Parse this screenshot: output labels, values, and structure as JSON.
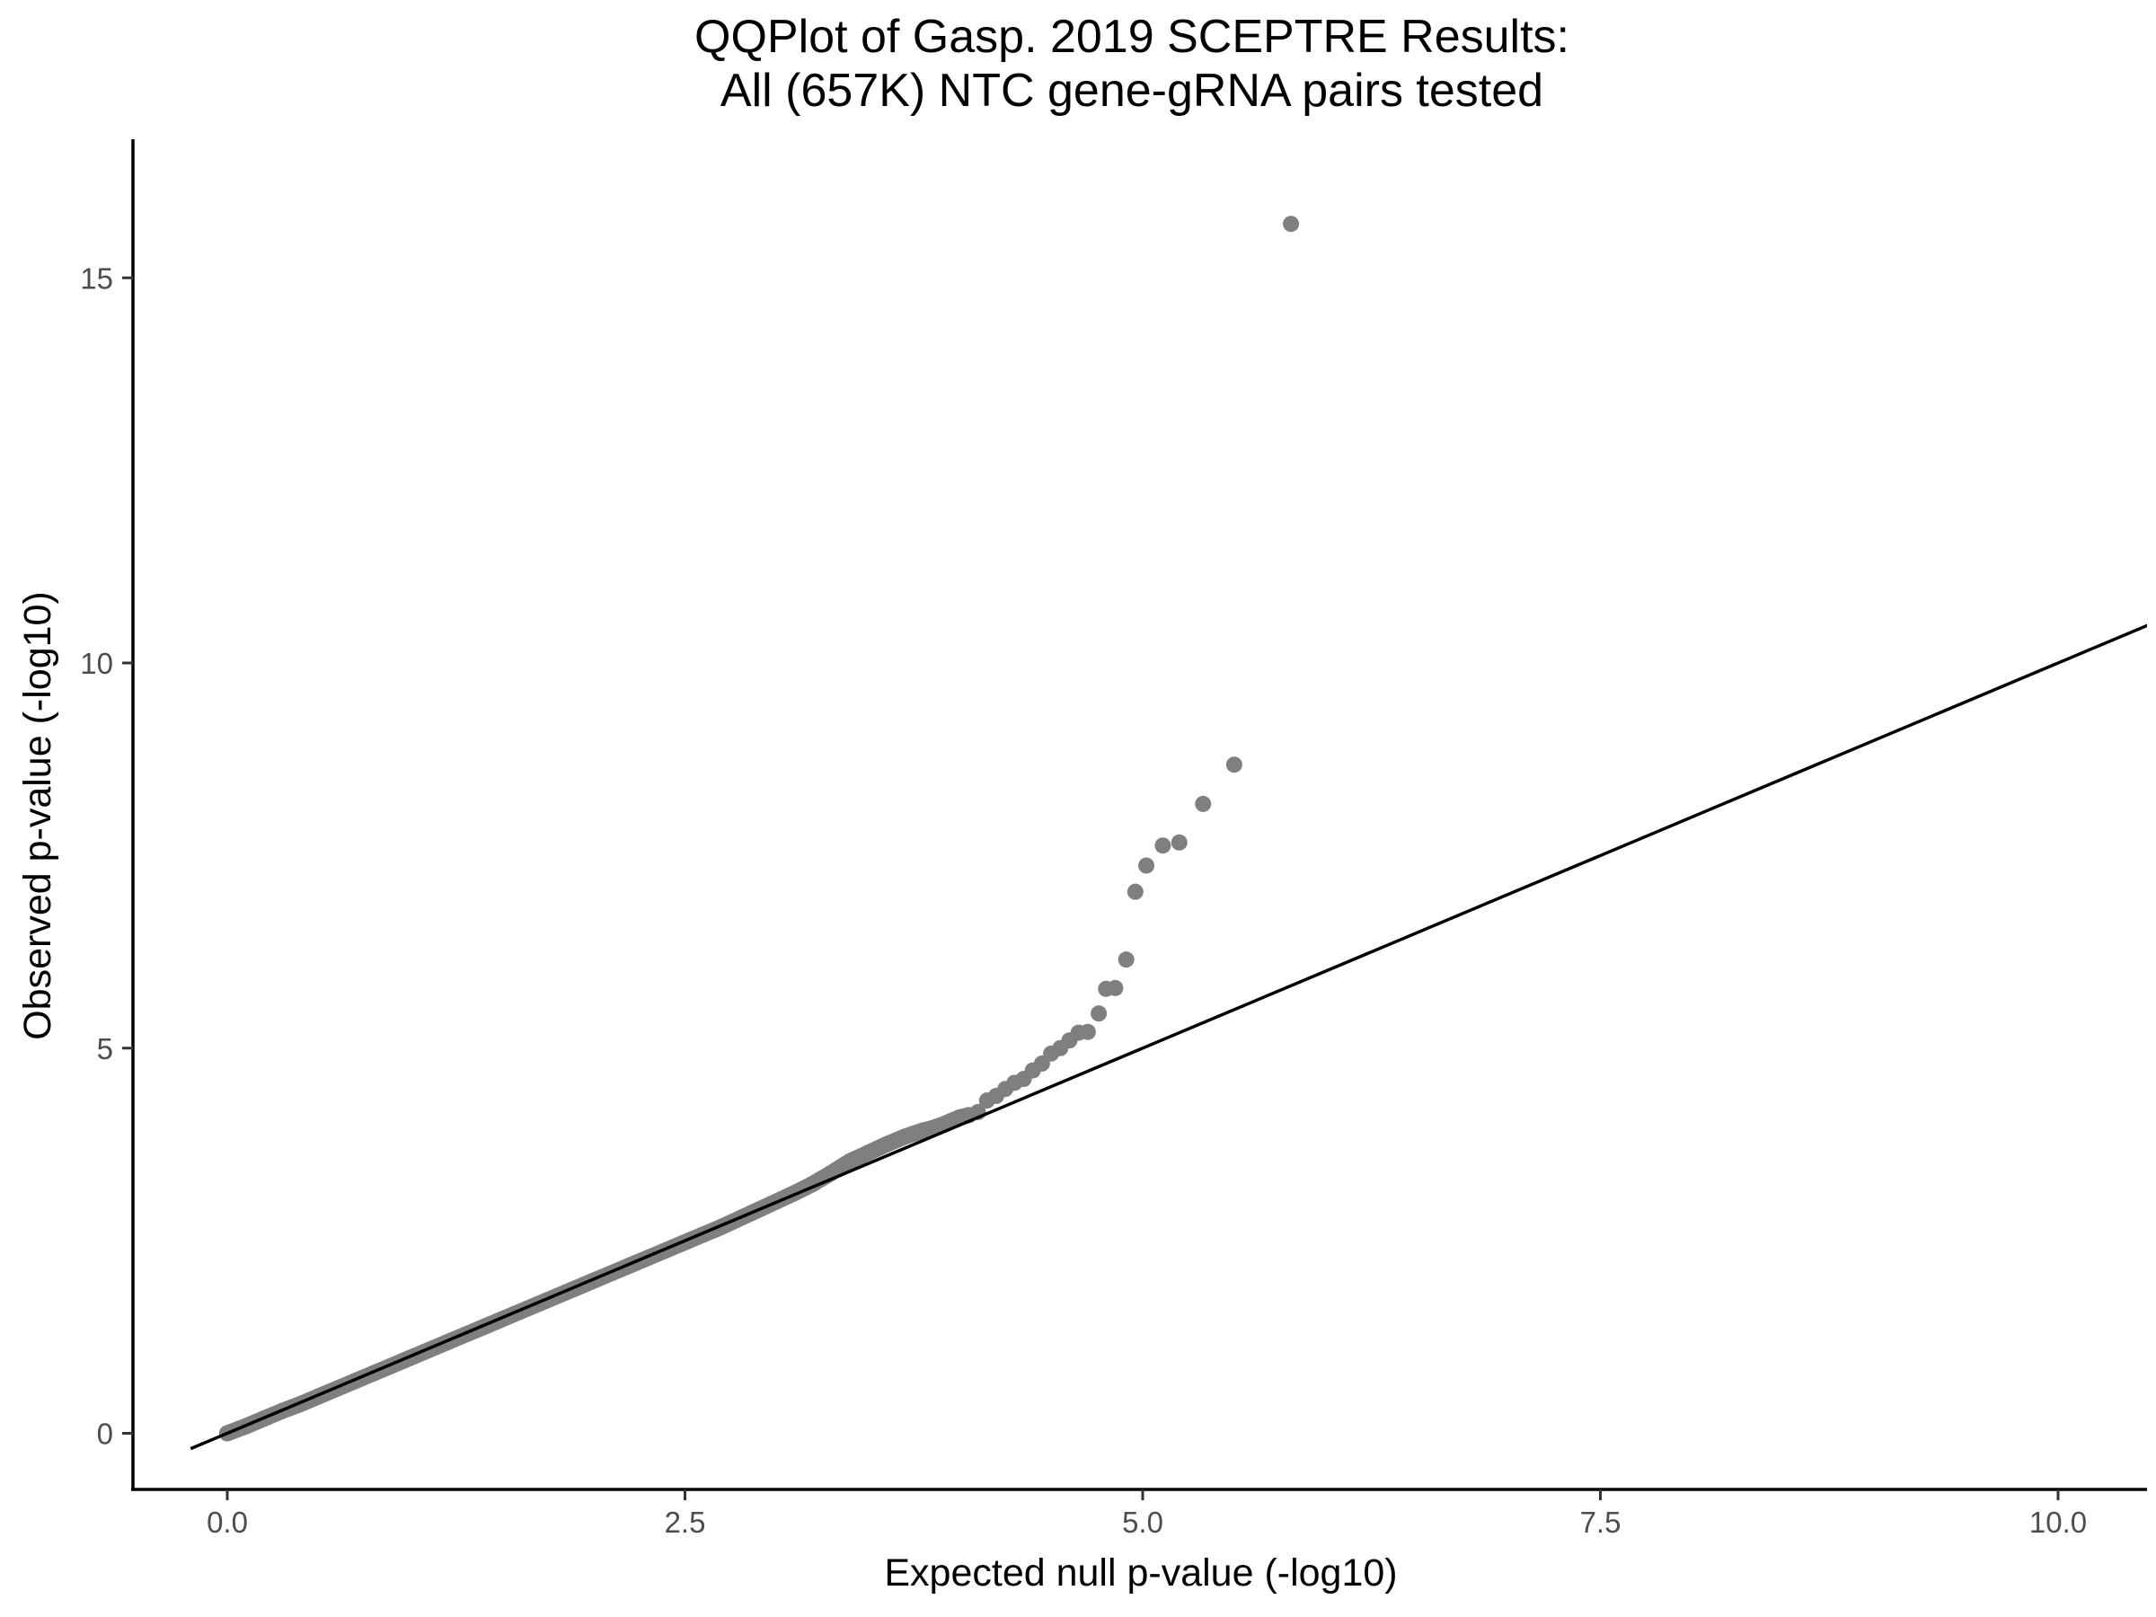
{
  "chart_data": {
    "type": "scatter",
    "title_lines": [
      "QQPlot of Gasp. 2019 SCEPTRE Results:",
      "All (657K) NTC gene-gRNA pairs tested"
    ],
    "xlabel": "Expected null p-value (-log10)",
    "ylabel": "Observed p-value (-log10)",
    "xlim": [
      -0.2,
      10.5
    ],
    "ylim": [
      -0.55,
      16.6
    ],
    "xticks": [
      0,
      2.5,
      5,
      7.5,
      10
    ],
    "xtick_labels": [
      "0.0",
      "2.5",
      "5.0",
      "7.5",
      "10.0"
    ],
    "yticks": [
      0,
      5,
      10,
      15
    ],
    "ytick_labels": [
      "0",
      "5",
      "10",
      "15"
    ],
    "grid": false,
    "legend": "none",
    "point_color": "#7f7f7f",
    "line_color": "#000000",
    "reference_line": {
      "intercept": 0,
      "slope": 1
    },
    "series": [
      {
        "values_note": "",
        "x": [
          0.0,
          0.1,
          0.2,
          0.3,
          0.4,
          0.5,
          0.6,
          0.7,
          0.8,
          0.9,
          1.0,
          1.1,
          1.2,
          1.3,
          1.4,
          1.5,
          1.6,
          1.7,
          1.8,
          1.9,
          2.0,
          2.1,
          2.2,
          2.3,
          2.4,
          2.5,
          2.6,
          2.7,
          2.8,
          2.9,
          3.0,
          3.1,
          3.2,
          3.3,
          3.4,
          3.5,
          3.6,
          3.7,
          3.75,
          3.8,
          3.85,
          3.9,
          3.95,
          4.0,
          4.05,
          4.1,
          4.15,
          4.2,
          4.25,
          4.3,
          4.35,
          4.4,
          4.45,
          4.5,
          4.55,
          4.6,
          4.65,
          4.7,
          4.76,
          4.8,
          4.85,
          4.91,
          4.96,
          5.02,
          5.11,
          5.2,
          5.33,
          5.5,
          5.81
        ],
        "y": [
          0.0,
          0.09,
          0.19,
          0.29,
          0.38,
          0.48,
          0.58,
          0.68,
          0.78,
          0.88,
          0.98,
          1.08,
          1.18,
          1.28,
          1.38,
          1.48,
          1.58,
          1.68,
          1.78,
          1.88,
          1.98,
          2.08,
          2.18,
          2.28,
          2.38,
          2.48,
          2.58,
          2.68,
          2.79,
          2.9,
          3.01,
          3.12,
          3.24,
          3.38,
          3.53,
          3.64,
          3.75,
          3.85,
          3.89,
          3.93,
          3.96,
          4.0,
          4.05,
          4.1,
          4.13,
          4.17,
          4.32,
          4.38,
          4.47,
          4.55,
          4.6,
          4.71,
          4.8,
          4.93,
          5.0,
          5.1,
          5.2,
          5.21,
          5.45,
          5.77,
          5.78,
          6.15,
          7.03,
          7.37,
          7.63,
          7.67,
          8.17,
          8.68,
          15.7
        ]
      }
    ]
  }
}
